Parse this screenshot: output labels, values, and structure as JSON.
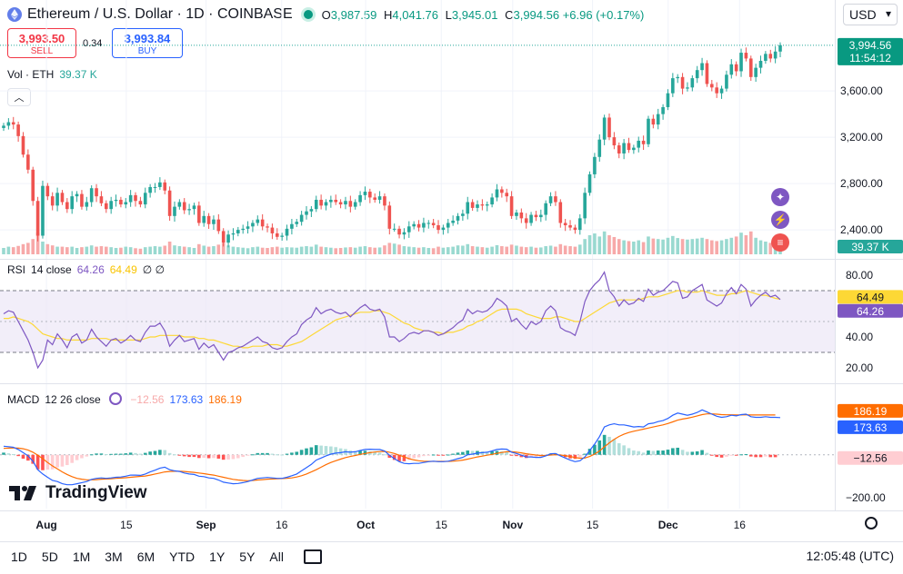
{
  "header": {
    "symbol": "Ethereum / U.S. Dollar · 1D · COINBASE",
    "o_label": "O",
    "o": "3,987.59",
    "h_label": "H",
    "h": "4,041.76",
    "l_label": "L",
    "l": "3,945.01",
    "c_label": "C",
    "c": "3,994.56 +6.96 (+0.17%)"
  },
  "currency": "USD",
  "trade": {
    "sell_price": "3,993.50",
    "sell_label": "SELL",
    "spread": "0.34",
    "buy_price": "3,993.84",
    "buy_label": "BUY"
  },
  "volume": {
    "label": "Vol · ETH",
    "value": "39.37 K"
  },
  "rsi": {
    "label": "RSI",
    "params": "14 close",
    "value": "64.26",
    "ma": "64.49",
    "extra": "∅ ∅"
  },
  "macd": {
    "label": "MACD",
    "params": "12 26 close",
    "hist": "−12.56",
    "macd": "173.63",
    "signal": "186.19"
  },
  "price_badge": {
    "price": "3,994.56",
    "countdown": "11:54:12"
  },
  "volume_badge": "39.37 K",
  "rsi_badges": [
    "64.49",
    "64.26"
  ],
  "macd_badges": [
    "186.19",
    "173.63",
    "−12.56"
  ],
  "brand": "TradingView",
  "ranges": [
    "1D",
    "5D",
    "1M",
    "3M",
    "6M",
    "YTD",
    "1Y",
    "5Y",
    "All"
  ],
  "clock": "12:05:48 (UTC)",
  "colors": {
    "up": "#26a69a",
    "down": "#ef5350",
    "rsi": "#7e57c2",
    "rsi_ma": "#fdd835",
    "macd": "#2962ff",
    "signal": "#ff6d00"
  },
  "chart_data": [
    {
      "type": "candlestick",
      "title": "Ethereum / U.S. Dollar · 1D · COINBASE",
      "x_ticks": [
        "Aug",
        "15",
        "Sep",
        "16",
        "Oct",
        "15",
        "Nov",
        "15",
        "Dec",
        "16"
      ],
      "y_ticks": [
        "3,600.00",
        "3,200.00",
        "2,800.00",
        "2,400.00"
      ],
      "ylim": [
        2150,
        4150
      ],
      "close": [
        3300,
        3330,
        3310,
        3210,
        3050,
        2920,
        2650,
        2350,
        2780,
        2690,
        2610,
        2720,
        2640,
        2580,
        2690,
        2710,
        2600,
        2640,
        2760,
        2690,
        2630,
        2580,
        2650,
        2660,
        2620,
        2640,
        2700,
        2650,
        2620,
        2720,
        2770,
        2770,
        2810,
        2740,
        2520,
        2600,
        2640,
        2570,
        2580,
        2610,
        2460,
        2520,
        2450,
        2490,
        2390,
        2290,
        2360,
        2370,
        2400,
        2410,
        2430,
        2460,
        2490,
        2430,
        2420,
        2370,
        2340,
        2350,
        2410,
        2450,
        2470,
        2530,
        2560,
        2580,
        2660,
        2610,
        2640,
        2660,
        2640,
        2620,
        2650,
        2600,
        2640,
        2700,
        2730,
        2680,
        2660,
        2690,
        2610,
        2410,
        2410,
        2360,
        2380,
        2430,
        2450,
        2420,
        2460,
        2460,
        2440,
        2400,
        2420,
        2460,
        2480,
        2520,
        2540,
        2640,
        2590,
        2620,
        2610,
        2620,
        2680,
        2750,
        2720,
        2690,
        2520,
        2550,
        2500,
        2460,
        2530,
        2510,
        2530,
        2630,
        2690,
        2640,
        2460,
        2440,
        2420,
        2400,
        2500,
        2720,
        2880,
        3030,
        3180,
        3370,
        3200,
        3130,
        3060,
        3150,
        3090,
        3110,
        3170,
        3140,
        3360,
        3310,
        3400,
        3460,
        3580,
        3710,
        3720,
        3620,
        3630,
        3710,
        3780,
        3840,
        3660,
        3630,
        3580,
        3620,
        3740,
        3830,
        3770,
        3930,
        3880,
        3720,
        3800,
        3860,
        3920,
        3880,
        3940,
        3994.56
      ],
      "volume_scale": "relative 0-1",
      "volume": [
        0.25,
        0.3,
        0.28,
        0.33,
        0.4,
        0.45,
        0.6,
        0.85,
        0.5,
        0.4,
        0.35,
        0.3,
        0.3,
        0.28,
        0.3,
        0.25,
        0.28,
        0.3,
        0.35,
        0.3,
        0.32,
        0.3,
        0.28,
        0.25,
        0.26,
        0.3,
        0.28,
        0.24,
        0.22,
        0.28,
        0.3,
        0.32,
        0.3,
        0.34,
        0.5,
        0.35,
        0.32,
        0.3,
        0.28,
        0.25,
        0.4,
        0.34,
        0.3,
        0.32,
        0.38,
        0.45,
        0.35,
        0.3,
        0.28,
        0.26,
        0.24,
        0.28,
        0.3,
        0.26,
        0.25,
        0.28,
        0.3,
        0.26,
        0.28,
        0.27,
        0.26,
        0.3,
        0.32,
        0.3,
        0.38,
        0.3,
        0.28,
        0.26,
        0.24,
        0.25,
        0.27,
        0.28,
        0.26,
        0.3,
        0.32,
        0.28,
        0.26,
        0.27,
        0.35,
        0.45,
        0.42,
        0.38,
        0.32,
        0.3,
        0.28,
        0.26,
        0.28,
        0.25,
        0.24,
        0.3,
        0.26,
        0.28,
        0.3,
        0.35,
        0.34,
        0.4,
        0.32,
        0.3,
        0.28,
        0.26,
        0.3,
        0.36,
        0.32,
        0.3,
        0.38,
        0.34,
        0.3,
        0.28,
        0.3,
        0.26,
        0.27,
        0.32,
        0.34,
        0.3,
        0.4,
        0.34,
        0.32,
        0.3,
        0.38,
        0.6,
        0.75,
        0.82,
        0.7,
        0.9,
        0.75,
        0.68,
        0.6,
        0.55,
        0.52,
        0.5,
        0.55,
        0.48,
        0.7,
        0.62,
        0.6,
        0.58,
        0.65,
        0.72,
        0.64,
        0.6,
        0.58,
        0.6,
        0.62,
        0.65,
        0.6,
        0.55,
        0.52,
        0.55,
        0.6,
        0.65,
        0.7,
        0.85,
        0.75,
        0.9,
        0.65,
        0.55,
        0.5,
        0.45,
        0.3,
        0.2
      ]
    },
    {
      "type": "line",
      "title": "RSI 14 close",
      "ylim": [
        10,
        90
      ],
      "y_ticks": [
        "80.00",
        "40.00",
        "20.00"
      ],
      "band": [
        30,
        70
      ],
      "series": [
        {
          "name": "RSI",
          "values": [
            55,
            57,
            56,
            50,
            44,
            38,
            30,
            20,
            25,
            38,
            35,
            42,
            38,
            33,
            40,
            42,
            36,
            38,
            45,
            40,
            37,
            34,
            38,
            39,
            36,
            38,
            41,
            38,
            37,
            43,
            47,
            47,
            49,
            44,
            34,
            38,
            41,
            37,
            38,
            39,
            32,
            36,
            33,
            35,
            30,
            25,
            30,
            31,
            33,
            34,
            36,
            38,
            40,
            37,
            36,
            33,
            32,
            33,
            37,
            40,
            42,
            48,
            51,
            53,
            59,
            55,
            57,
            58,
            56,
            55,
            56,
            53,
            56,
            59,
            61,
            58,
            57,
            58,
            53,
            40,
            40,
            37,
            39,
            42,
            43,
            42,
            44,
            44,
            43,
            41,
            42,
            44,
            46,
            49,
            51,
            58,
            55,
            57,
            56,
            57,
            60,
            65,
            63,
            60,
            50,
            52,
            48,
            45,
            50,
            48,
            50,
            57,
            60,
            57,
            46,
            44,
            43,
            41,
            50,
            63,
            70,
            74,
            77,
            82,
            70,
            66,
            60,
            64,
            61,
            62,
            65,
            63,
            71,
            67,
            69,
            70,
            73,
            76,
            75,
            65,
            66,
            70,
            72,
            74,
            64,
            62,
            60,
            62,
            68,
            72,
            68,
            74,
            71,
            60,
            64,
            67,
            69,
            66,
            67,
            64.26
          ]
        },
        {
          "name": "MA",
          "values": [
            52,
            52,
            53,
            52,
            51,
            50,
            48,
            45,
            42,
            41,
            40,
            39,
            39,
            38,
            38,
            38,
            38,
            38,
            39,
            39,
            39,
            39,
            38,
            38,
            38,
            38,
            38,
            38,
            38,
            39,
            40,
            40,
            41,
            41,
            41,
            41,
            41,
            40,
            40,
            40,
            39,
            39,
            38,
            38,
            37,
            36,
            35,
            34,
            34,
            33,
            33,
            34,
            34,
            34,
            35,
            35,
            35,
            34,
            34,
            35,
            36,
            37,
            39,
            41,
            43,
            45,
            47,
            49,
            51,
            52,
            53,
            54,
            55,
            56,
            56,
            56,
            57,
            57,
            56,
            55,
            53,
            51,
            49,
            48,
            46,
            45,
            44,
            44,
            43,
            43,
            42,
            43,
            43,
            44,
            45,
            47,
            48,
            50,
            51,
            53,
            55,
            57,
            58,
            58,
            58,
            58,
            57,
            55,
            54,
            53,
            52,
            52,
            52,
            53,
            53,
            52,
            51,
            50,
            50,
            52,
            54,
            56,
            58,
            60,
            62,
            63,
            64,
            64,
            64,
            64,
            64,
            65,
            66,
            66,
            66,
            67,
            68,
            69,
            70,
            70,
            69,
            69,
            69,
            70,
            69,
            68,
            67,
            67,
            67,
            68,
            68,
            69,
            70,
            69,
            68,
            67,
            67,
            66,
            65,
            64.49
          ]
        }
      ]
    },
    {
      "type": "bar+line",
      "title": "MACD 12 26 close",
      "ylim": [
        -260,
        330
      ],
      "y_ticks": [
        "−200.00"
      ],
      "series": [
        {
          "name": "MACD",
          "values": [
            40,
            38,
            35,
            25,
            10,
            -5,
            -30,
            -70,
            -90,
            -105,
            -120,
            -125,
            -135,
            -140,
            -140,
            -135,
            -130,
            -125,
            -115,
            -110,
            -108,
            -110,
            -108,
            -105,
            -104,
            -100,
            -95,
            -95,
            -96,
            -90,
            -80,
            -72,
            -62,
            -58,
            -70,
            -75,
            -78,
            -85,
            -90,
            -92,
            -100,
            -102,
            -108,
            -110,
            -118,
            -128,
            -132,
            -135,
            -134,
            -130,
            -125,
            -118,
            -110,
            -108,
            -106,
            -108,
            -110,
            -110,
            -105,
            -98,
            -90,
            -75,
            -60,
            -45,
            -25,
            -15,
            -5,
            3,
            8,
            10,
            14,
            12,
            14,
            20,
            25,
            26,
            25,
            25,
            18,
            -2,
            -18,
            -32,
            -40,
            -42,
            -40,
            -40,
            -36,
            -32,
            -30,
            -32,
            -32,
            -30,
            -25,
            -18,
            -12,
            0,
            3,
            8,
            10,
            12,
            18,
            25,
            27,
            26,
            12,
            6,
            -2,
            -10,
            -10,
            -12,
            -12,
            -5,
            5,
            6,
            -5,
            -15,
            -25,
            -32,
            -28,
            -10,
            20,
            50,
            85,
            130,
            140,
            145,
            140,
            140,
            135,
            130,
            132,
            130,
            145,
            148,
            155,
            160,
            170,
            185,
            195,
            190,
            185,
            190,
            198,
            210,
            200,
            190,
            180,
            175,
            178,
            185,
            182,
            188,
            190,
            178,
            175,
            175,
            178,
            175,
            175,
            173.63
          ]
        },
        {
          "name": "Signal",
          "values": [
            30,
            31,
            32,
            31,
            28,
            22,
            12,
            -2,
            -18,
            -36,
            -52,
            -66,
            -80,
            -92,
            -102,
            -110,
            -114,
            -117,
            -117,
            -116,
            -114,
            -113,
            -112,
            -110,
            -109,
            -107,
            -105,
            -103,
            -101,
            -99,
            -95,
            -90,
            -85,
            -80,
            -78,
            -77,
            -77,
            -78,
            -80,
            -82,
            -85,
            -88,
            -92,
            -95,
            -100,
            -105,
            -110,
            -115,
            -118,
            -120,
            -121,
            -120,
            -118,
            -116,
            -114,
            -113,
            -112,
            -111,
            -110,
            -108,
            -104,
            -98,
            -90,
            -80,
            -70,
            -58,
            -46,
            -36,
            -28,
            -20,
            -13,
            -8,
            -3,
            2,
            6,
            10,
            13,
            15,
            16,
            12,
            6,
            -2,
            -10,
            -18,
            -24,
            -28,
            -30,
            -31,
            -31,
            -31,
            -31,
            -31,
            -30,
            -28,
            -25,
            -20,
            -15,
            -10,
            -6,
            -2,
            2,
            7,
            11,
            14,
            14,
            12,
            9,
            5,
            2,
            -1,
            -3,
            -3,
            -1,
            0,
            -1,
            -4,
            -8,
            -13,
            -16,
            -15,
            -8,
            3,
            18,
            37,
            56,
            72,
            86,
            96,
            104,
            110,
            115,
            120,
            125,
            130,
            135,
            140,
            146,
            154,
            162,
            167,
            171,
            176,
            182,
            188,
            191,
            191,
            190,
            188,
            187,
            187,
            186,
            186,
            187,
            186,
            186,
            186,
            186,
            186,
            186.19
          ]
        }
      ]
    }
  ]
}
